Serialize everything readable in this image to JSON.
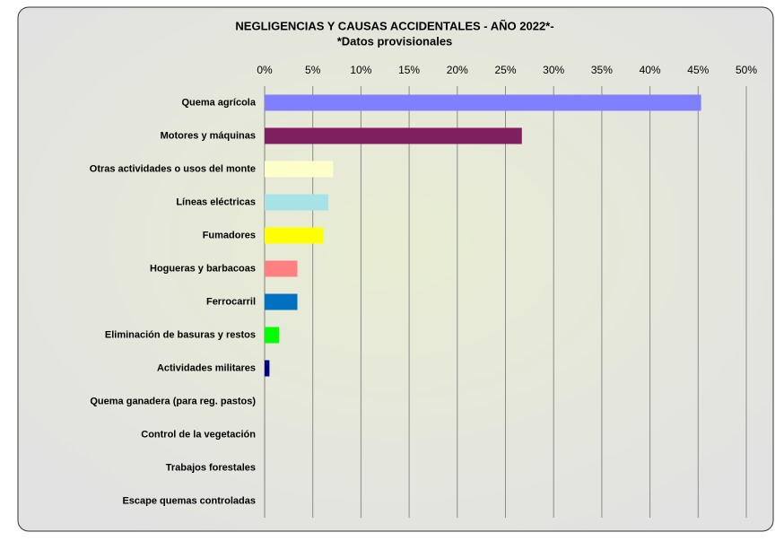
{
  "chart_data": {
    "type": "bar",
    "orientation": "horizontal",
    "title": "NEGLIGENCIAS Y CAUSAS ACCIDENTALES - AÑO 2022*-",
    "subtitle": "*Datos provisionales",
    "categories": [
      "Quema agrícola",
      "Motores y máquinas",
      "Otras actividades o usos del monte",
      "Líneas eléctricas",
      "Fumadores",
      "Hogueras y barbacoas",
      "Ferrocarril",
      "Eliminación de basuras y restos",
      "Actividades militares",
      "Quema ganadera (para reg. pastos)",
      "Control de la vegetación",
      "Trabajos forestales",
      "Escape quemas controladas"
    ],
    "values": [
      45.3,
      26.7,
      7.1,
      6.6,
      6.1,
      3.4,
      3.4,
      1.5,
      0.5,
      0,
      0,
      0,
      0
    ],
    "colors": [
      "#8080ff",
      "#7f1f5f",
      "#ffffcc",
      "#a6e3e6",
      "#ffff00",
      "#ff8080",
      "#0070c0",
      "#00ff00",
      "#000080",
      "#808080",
      "#808080",
      "#808080",
      "#808080"
    ],
    "xlim": [
      0,
      50
    ],
    "xticks": [
      {
        "value": 0,
        "label": "0%"
      },
      {
        "value": 5,
        "label": "5%"
      },
      {
        "value": 10,
        "label": "10%"
      },
      {
        "value": 15,
        "label": "15%"
      },
      {
        "value": 20,
        "label": "20%"
      },
      {
        "value": 25,
        "label": "25%"
      },
      {
        "value": 30,
        "label": "30%"
      },
      {
        "value": 35,
        "label": "35%"
      },
      {
        "value": 40,
        "label": "40%"
      },
      {
        "value": 45,
        "label": "45%"
      },
      {
        "value": 50,
        "label": "50%"
      }
    ],
    "grid": true
  }
}
